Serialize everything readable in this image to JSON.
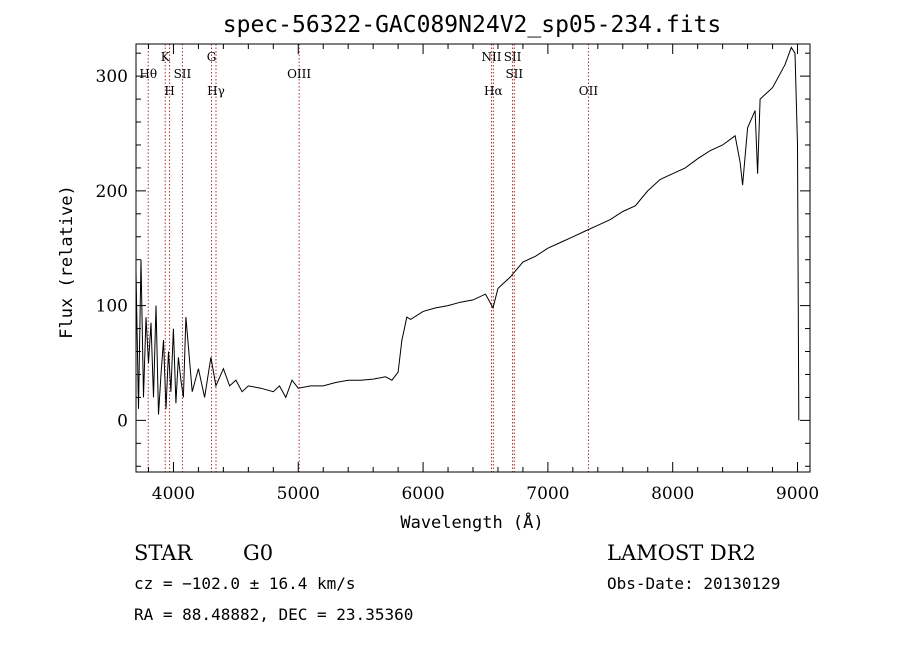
{
  "chart_data": {
    "type": "line",
    "title": "spec-56322-GAC089N24V2_sp05-234.fits",
    "xlabel": "Wavelength (Å)",
    "ylabel": "Flux (relative)",
    "xlim": [
      3700,
      9100
    ],
    "ylim": [
      -45,
      328
    ],
    "xticks": [
      {
        "value": 4000,
        "label": "4000"
      },
      {
        "value": 5000,
        "label": "5000"
      },
      {
        "value": 6000,
        "label": "6000"
      },
      {
        "value": 7000,
        "label": "7000"
      },
      {
        "value": 8000,
        "label": "8000"
      },
      {
        "value": 9000,
        "label": "9000"
      }
    ],
    "yticks": [
      {
        "value": 0,
        "label": "0"
      },
      {
        "value": 100,
        "label": "100"
      },
      {
        "value": 200,
        "label": "200"
      },
      {
        "value": 300,
        "label": "300"
      }
    ],
    "grid": false,
    "legend": "none",
    "spectrum_color": "#000000",
    "marker_color": "#b03030",
    "series": [
      {
        "x": [
          3700,
          3720,
          3740,
          3760,
          3780,
          3800,
          3820,
          3840,
          3860,
          3880,
          3900,
          3920,
          3940,
          3960,
          3980,
          4000,
          4020,
          4040,
          4060,
          4080,
          4100,
          4150,
          4200,
          4250,
          4300,
          4340,
          4400,
          4450,
          4500,
          4550,
          4600,
          4700,
          4800,
          4850,
          4900,
          4950,
          5000,
          5100,
          5200,
          5300,
          5400,
          5500,
          5600,
          5700,
          5750,
          5800,
          5830,
          5850,
          5870,
          5900,
          6000,
          6100,
          6200,
          6300,
          6400,
          6500,
          6560,
          6600,
          6700,
          6800,
          6900,
          7000,
          7100,
          7200,
          7300,
          7400,
          7500,
          7600,
          7700,
          7800,
          7900,
          8000,
          8100,
          8200,
          8300,
          8400,
          8500,
          8540,
          8560,
          8600,
          8660,
          8680,
          8700,
          8800,
          8900,
          8950,
          8980,
          9000,
          9010
        ],
        "y": [
          130,
          10,
          140,
          20,
          90,
          50,
          85,
          20,
          100,
          5,
          40,
          70,
          10,
          60,
          25,
          80,
          15,
          55,
          35,
          20,
          90,
          25,
          45,
          20,
          55,
          30,
          45,
          30,
          35,
          25,
          30,
          28,
          25,
          30,
          20,
          35,
          28,
          30,
          30,
          33,
          35,
          35,
          36,
          38,
          35,
          42,
          70,
          80,
          90,
          88,
          95,
          98,
          100,
          103,
          105,
          110,
          98,
          115,
          125,
          138,
          143,
          150,
          155,
          160,
          165,
          170,
          175,
          182,
          187,
          200,
          210,
          215,
          220,
          228,
          235,
          240,
          248,
          225,
          205,
          255,
          270,
          215,
          280,
          290,
          310,
          325,
          320,
          240,
          0
        ]
      }
    ],
    "lines": [
      {
        "name": "Hθ",
        "x": 3798,
        "label": "Hθ",
        "row": 1
      },
      {
        "name": "K",
        "x": 3934,
        "label": "K",
        "row": 0
      },
      {
        "name": "H",
        "x": 3969,
        "label": "H",
        "row": 2
      },
      {
        "name": "SII-4072",
        "x": 4072,
        "label": "SII",
        "row": 1
      },
      {
        "name": "G",
        "x": 4305,
        "label": "G",
        "row": 0
      },
      {
        "name": "Hγ",
        "x": 4341,
        "label": "Hγ",
        "row": 2
      },
      {
        "name": "OIII",
        "x": 5007,
        "label": "OIII",
        "row": 1
      },
      {
        "name": "NII",
        "x": 6548,
        "label": "NII",
        "row": 0
      },
      {
        "name": "Hα",
        "x": 6563,
        "label": "Hα",
        "row": 2
      },
      {
        "name": "SII-6717",
        "x": 6717,
        "label": "SII",
        "row": 0
      },
      {
        "name": "SII-6731",
        "x": 6731,
        "label": "SII",
        "row": 1
      },
      {
        "name": "OII",
        "x": 7325,
        "label": "OII",
        "row": 2
      }
    ]
  },
  "info": {
    "class": "STAR",
    "subclass": "G0",
    "survey": "LAMOST DR2",
    "cz": "cz = −102.0 ± 16.4 km/s",
    "obs_date": "Obs-Date: 20130129",
    "radec": "RA =  88.48882, DEC =  23.35360"
  }
}
